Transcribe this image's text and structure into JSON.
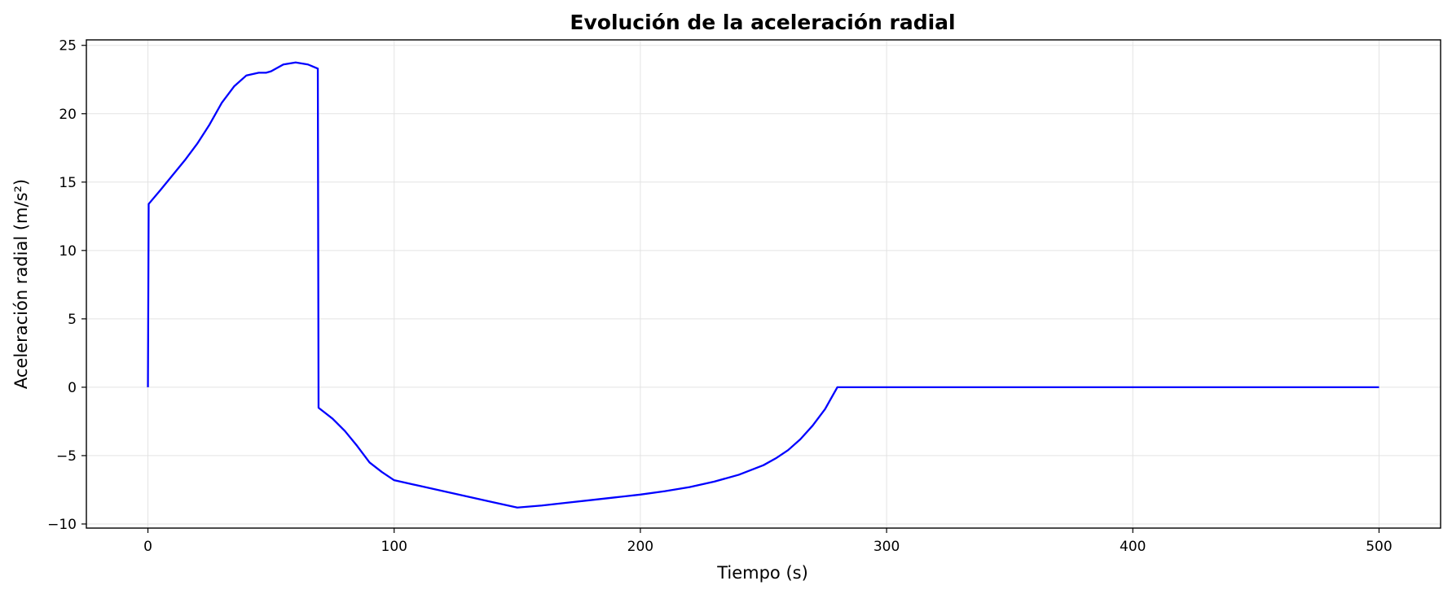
{
  "chart_data": {
    "type": "line",
    "title": "Evolución de la aceleración radial",
    "xlabel": "Tiempo (s)",
    "ylabel": "Aceleración radial (m/s²)",
    "xlim": [
      -25,
      525
    ],
    "ylim": [
      -10.3,
      25.4
    ],
    "xticks": [
      0,
      100,
      200,
      300,
      400,
      500
    ],
    "xtick_labels": [
      "0",
      "100",
      "200",
      "300",
      "400",
      "500"
    ],
    "yticks": [
      -10,
      -5,
      0,
      5,
      10,
      15,
      20,
      25
    ],
    "ytick_labels": [
      "−10",
      "−5",
      "0",
      "5",
      "10",
      "15",
      "20",
      "25"
    ],
    "grid": true,
    "series": [
      {
        "color": "#0000ff",
        "x": [
          0,
          0.3,
          5,
          10,
          15,
          20,
          25,
          30,
          35,
          40,
          45,
          48,
          50,
          55,
          60,
          65,
          69,
          69.3,
          75,
          80,
          85,
          90,
          95,
          100,
          110,
          120,
          130,
          140,
          150,
          160,
          170,
          180,
          190,
          200,
          210,
          220,
          230,
          240,
          250,
          255,
          260,
          265,
          270,
          275,
          280,
          300,
          350,
          400,
          450,
          500
        ],
        "y": [
          0,
          13.4,
          14.4,
          15.5,
          16.6,
          17.8,
          19.2,
          20.8,
          22.0,
          22.8,
          23.0,
          23.0,
          23.1,
          23.6,
          23.75,
          23.6,
          23.3,
          -1.5,
          -2.3,
          -3.2,
          -4.3,
          -5.5,
          -6.2,
          -6.8,
          -7.2,
          -7.6,
          -8.0,
          -8.4,
          -8.8,
          -8.65,
          -8.45,
          -8.25,
          -8.05,
          -7.85,
          -7.6,
          -7.3,
          -6.9,
          -6.4,
          -5.7,
          -5.2,
          -4.6,
          -3.8,
          -2.8,
          -1.6,
          0,
          0,
          0,
          0,
          0,
          0
        ]
      }
    ]
  }
}
